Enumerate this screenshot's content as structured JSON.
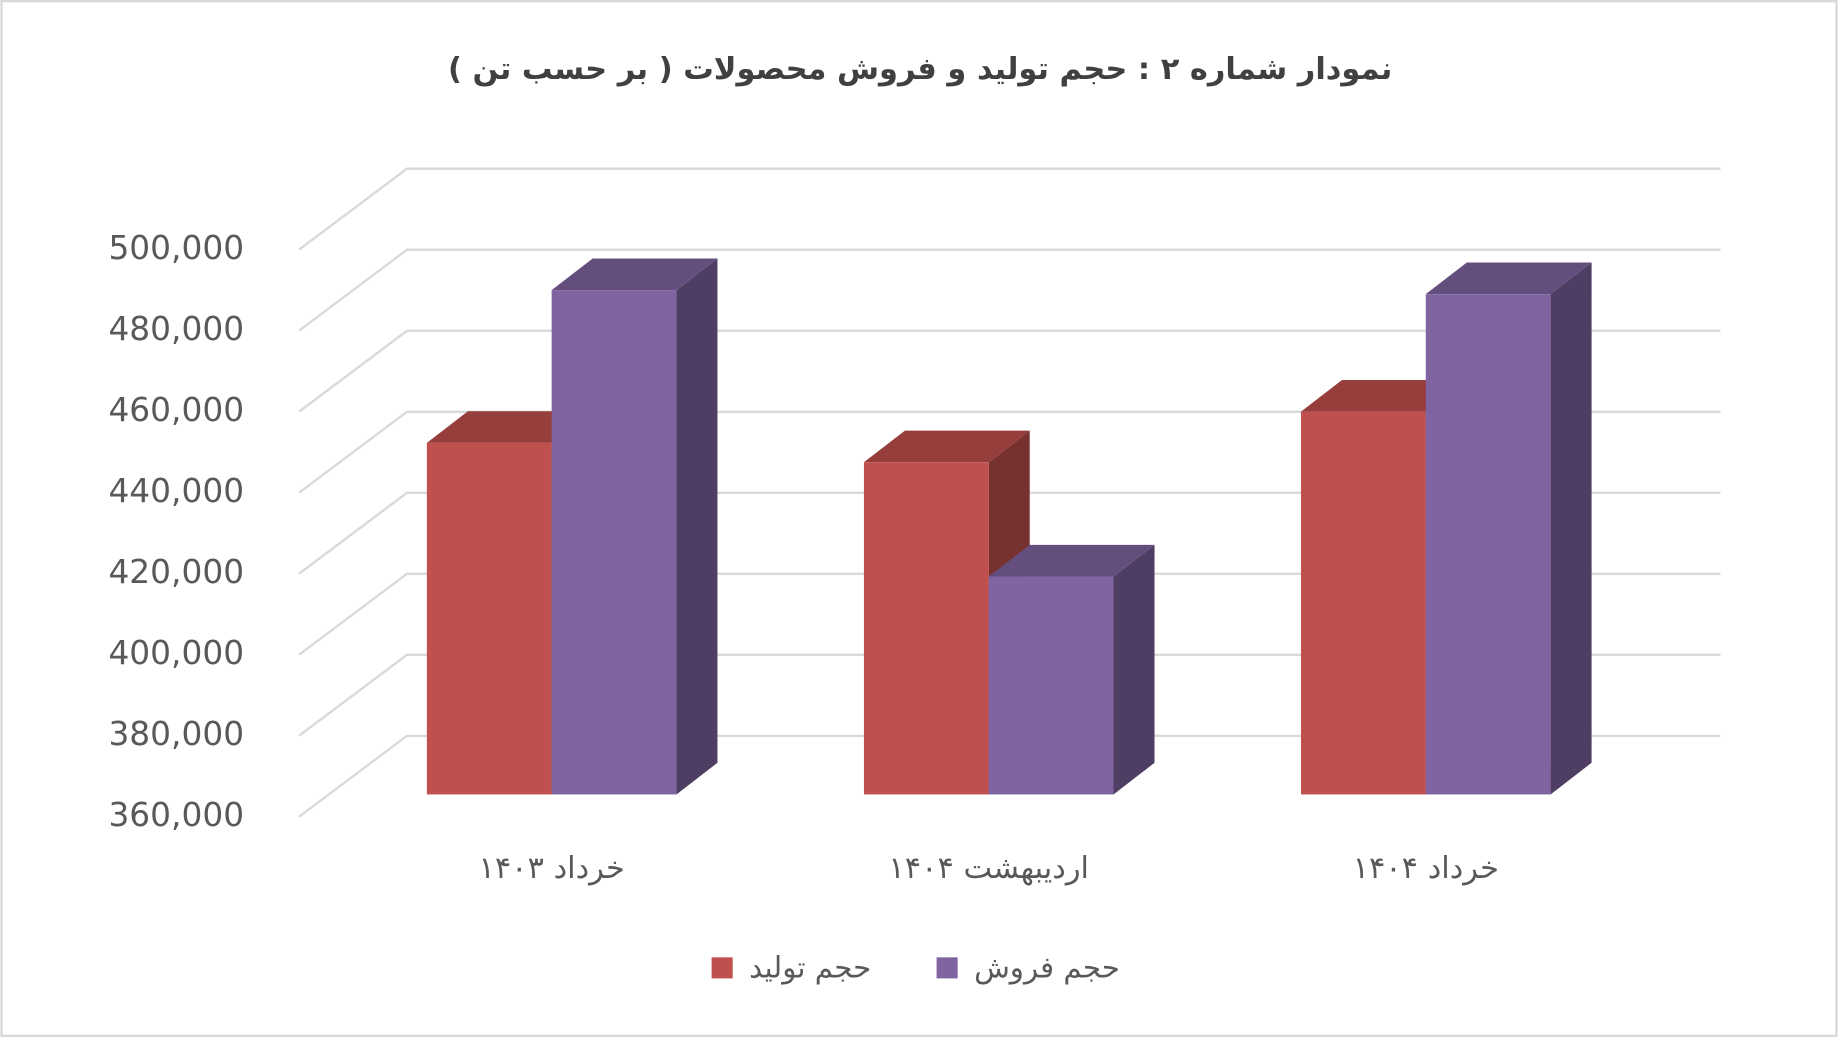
{
  "chart_data": {
    "type": "bar3d",
    "title": "نمودار شماره ۲ : حجم تولید و فروش محصولات ( بر حسب تن )",
    "categories": [
      "خرداد ۱۴۰۳",
      "اردیبهشت ۱۴۰۴",
      "خرداد ۱۴۰۴"
    ],
    "series": [
      {
        "name": "حجم تولید",
        "color": "#c0504d",
        "values": [
          446800,
          442000,
          454500
        ]
      },
      {
        "name": "حجم فروش",
        "color": "#8064a2",
        "values": [
          484500,
          413800,
          483500
        ]
      }
    ],
    "ylim": [
      360000,
      500000
    ],
    "yticks": [
      {
        "value": 360000,
        "label": "360,000"
      },
      {
        "value": 380000,
        "label": "380,000"
      },
      {
        "value": 400000,
        "label": "400,000"
      },
      {
        "value": 420000,
        "label": "420,000"
      },
      {
        "value": 440000,
        "label": "440,000"
      },
      {
        "value": 460000,
        "label": "460,000"
      },
      {
        "value": 480000,
        "label": "480,000"
      },
      {
        "value": 500000,
        "label": "500,000"
      }
    ],
    "grid": true,
    "legend": "bottom"
  }
}
